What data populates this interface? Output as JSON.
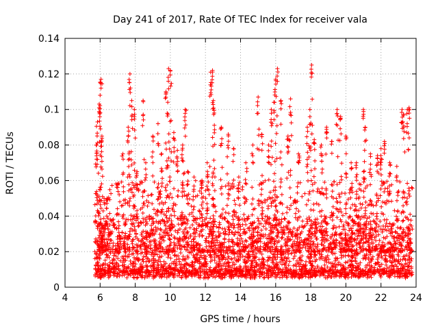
{
  "chart_data": {
    "type": "scatter",
    "title": "Day 241 of 2017, Rate Of TEC Index for receiver vala",
    "xlabel": "GPS time / hours",
    "ylabel": "ROTI / TECUs",
    "xlim": [
      4,
      24
    ],
    "ylim": [
      0,
      0.14
    ],
    "xticks": [
      4,
      6,
      8,
      10,
      12,
      14,
      16,
      18,
      20,
      22,
      24
    ],
    "xtick_labels": [
      "4",
      "6",
      "8",
      "10",
      "12",
      "14",
      "16",
      "18",
      "20",
      "22",
      "24"
    ],
    "yticks": [
      0,
      0.02,
      0.04,
      0.06,
      0.08,
      0.1,
      0.12,
      0.14
    ],
    "ytick_labels": [
      "0",
      "0.02",
      "0.04",
      "0.06",
      "0.08",
      "0.1",
      "0.12",
      "0.14"
    ],
    "grid": true,
    "marker": "+",
    "color": "#ff0000",
    "series": [
      {
        "name": "ROTI",
        "x_range": [
          5.7,
          23.8
        ],
        "typical_range": [
          0.005,
          0.03
        ],
        "peaks": [
          {
            "x": 5.8,
            "y": 0.08
          },
          {
            "x": 5.85,
            "y": 0.093
          },
          {
            "x": 5.95,
            "y": 0.103
          },
          {
            "x": 6.0,
            "y": 0.108
          },
          {
            "x": 6.05,
            "y": 0.117
          },
          {
            "x": 6.1,
            "y": 0.085
          },
          {
            "x": 6.4,
            "y": 0.05
          },
          {
            "x": 7.0,
            "y": 0.058
          },
          {
            "x": 7.3,
            "y": 0.075
          },
          {
            "x": 7.6,
            "y": 0.09
          },
          {
            "x": 7.7,
            "y": 0.12
          },
          {
            "x": 7.8,
            "y": 0.105
          },
          {
            "x": 7.95,
            "y": 0.1
          },
          {
            "x": 8.1,
            "y": 0.065
          },
          {
            "x": 8.45,
            "y": 0.105
          },
          {
            "x": 8.6,
            "y": 0.07
          },
          {
            "x": 9.0,
            "y": 0.085
          },
          {
            "x": 9.3,
            "y": 0.092
          },
          {
            "x": 9.5,
            "y": 0.075
          },
          {
            "x": 9.75,
            "y": 0.11
          },
          {
            "x": 9.85,
            "y": 0.104
          },
          {
            "x": 9.9,
            "y": 0.123
          },
          {
            "x": 10.0,
            "y": 0.122
          },
          {
            "x": 10.2,
            "y": 0.087
          },
          {
            "x": 10.4,
            "y": 0.077
          },
          {
            "x": 10.7,
            "y": 0.08
          },
          {
            "x": 10.85,
            "y": 0.1
          },
          {
            "x": 11.0,
            "y": 0.065
          },
          {
            "x": 11.35,
            "y": 0.062
          },
          {
            "x": 11.8,
            "y": 0.06
          },
          {
            "x": 12.1,
            "y": 0.07
          },
          {
            "x": 12.3,
            "y": 0.121
          },
          {
            "x": 12.4,
            "y": 0.122
          },
          {
            "x": 12.45,
            "y": 0.105
          },
          {
            "x": 12.5,
            "y": 0.098
          },
          {
            "x": 12.9,
            "y": 0.09
          },
          {
            "x": 13.3,
            "y": 0.086
          },
          {
            "x": 13.6,
            "y": 0.078
          },
          {
            "x": 13.9,
            "y": 0.062
          },
          {
            "x": 14.3,
            "y": 0.07
          },
          {
            "x": 14.7,
            "y": 0.08
          },
          {
            "x": 15.0,
            "y": 0.107
          },
          {
            "x": 15.2,
            "y": 0.086
          },
          {
            "x": 15.6,
            "y": 0.08
          },
          {
            "x": 15.75,
            "y": 0.1
          },
          {
            "x": 15.9,
            "y": 0.104
          },
          {
            "x": 16.0,
            "y": 0.117
          },
          {
            "x": 16.1,
            "y": 0.123
          },
          {
            "x": 16.3,
            "y": 0.105
          },
          {
            "x": 16.7,
            "y": 0.085
          },
          {
            "x": 16.85,
            "y": 0.106
          },
          {
            "x": 17.3,
            "y": 0.075
          },
          {
            "x": 17.8,
            "y": 0.09
          },
          {
            "x": 17.95,
            "y": 0.1
          },
          {
            "x": 18.05,
            "y": 0.125
          },
          {
            "x": 18.2,
            "y": 0.083
          },
          {
            "x": 18.6,
            "y": 0.08
          },
          {
            "x": 18.9,
            "y": 0.09
          },
          {
            "x": 19.2,
            "y": 0.082
          },
          {
            "x": 19.5,
            "y": 0.1
          },
          {
            "x": 19.7,
            "y": 0.096
          },
          {
            "x": 20.0,
            "y": 0.085
          },
          {
            "x": 20.3,
            "y": 0.07
          },
          {
            "x": 20.6,
            "y": 0.07
          },
          {
            "x": 21.0,
            "y": 0.1
          },
          {
            "x": 21.1,
            "y": 0.09
          },
          {
            "x": 21.4,
            "y": 0.075
          },
          {
            "x": 21.8,
            "y": 0.074
          },
          {
            "x": 22.0,
            "y": 0.078
          },
          {
            "x": 22.2,
            "y": 0.082
          },
          {
            "x": 22.5,
            "y": 0.07
          },
          {
            "x": 22.9,
            "y": 0.068
          },
          {
            "x": 23.2,
            "y": 0.1
          },
          {
            "x": 23.3,
            "y": 0.097
          },
          {
            "x": 23.5,
            "y": 0.1
          },
          {
            "x": 23.6,
            "y": 0.101
          }
        ]
      }
    ]
  }
}
